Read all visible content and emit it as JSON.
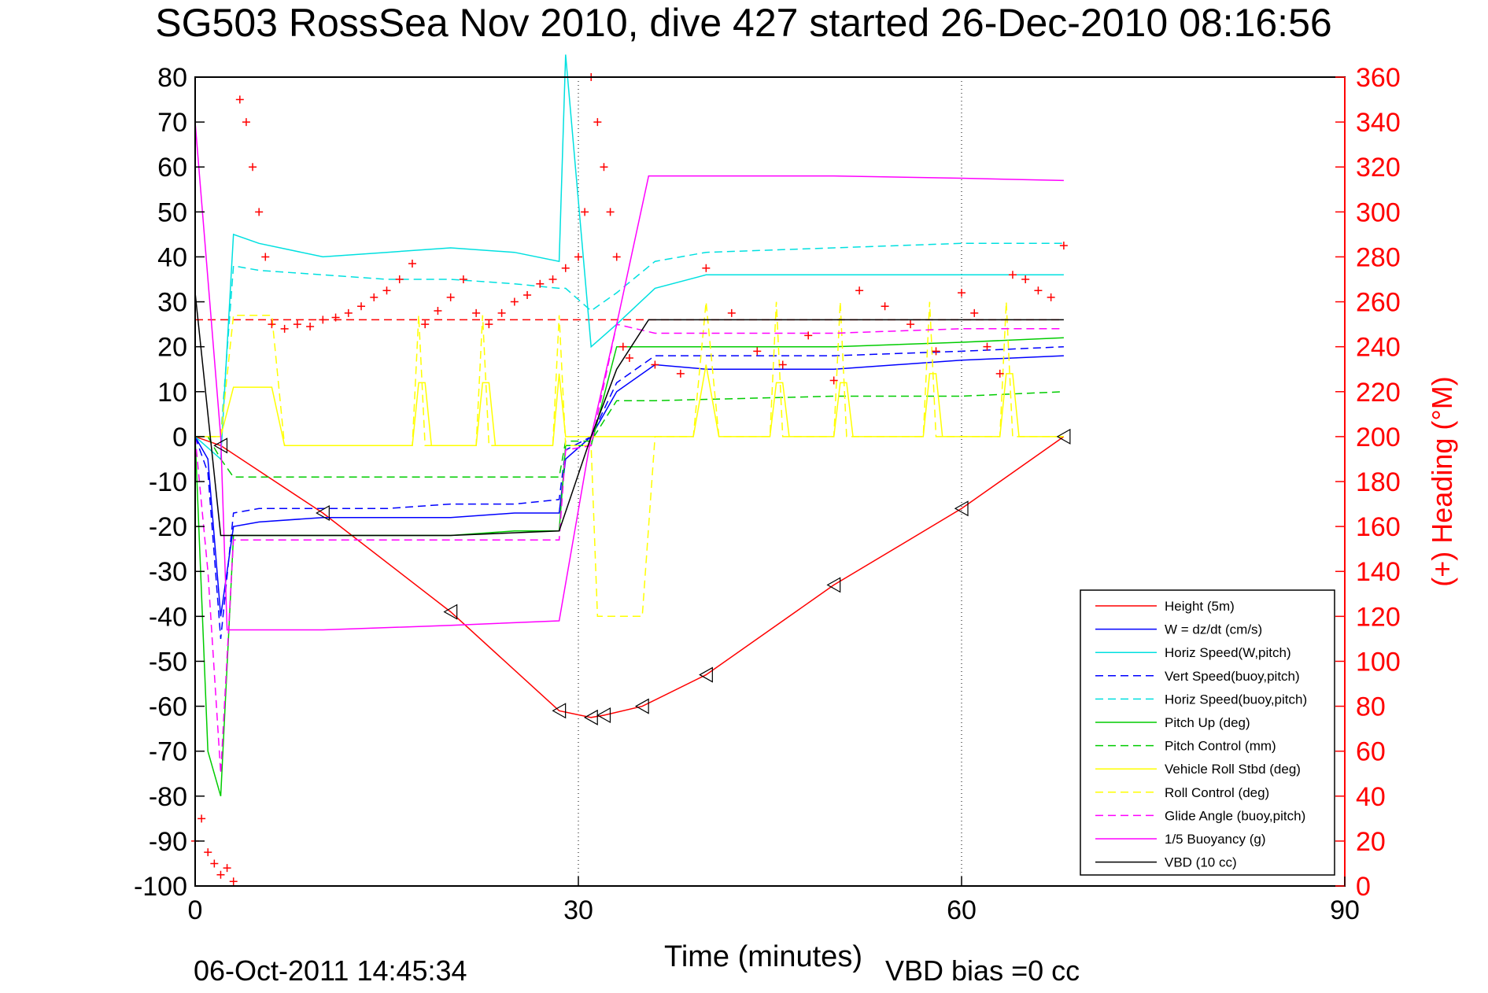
{
  "chart_data": {
    "type": "line",
    "title": "SG503 RossSea Nov 2010, dive 427 started 26-Dec-2010 08:16:56",
    "xlabel": "Time (minutes)",
    "ylabel": "",
    "y2label": "(+) Heading (°M)",
    "xlim": [
      0,
      90
    ],
    "ylim": [
      -100,
      80
    ],
    "y2lim": [
      0,
      360
    ],
    "xticks": [
      0,
      30,
      60,
      90
    ],
    "yticks": [
      80,
      70,
      60,
      50,
      40,
      30,
      20,
      10,
      0,
      -10,
      -20,
      -30,
      -40,
      -50,
      -60,
      -70,
      -80,
      -90,
      -100
    ],
    "y2ticks": [
      360,
      340,
      320,
      300,
      280,
      260,
      240,
      220,
      200,
      180,
      160,
      140,
      120,
      100,
      80,
      60,
      40,
      20,
      0
    ],
    "grid": "dotted at x ticks",
    "legend_position": "bottom-right",
    "footer_left": "06-Oct-2011 14:45:34",
    "footer_right": "VBD bias =0 cc",
    "heading_reference": 252,
    "series": [
      {
        "name": "Height (5m)",
        "color": "#ff0000",
        "dash": "solid",
        "x": [
          0,
          2,
          10,
          20,
          28.5,
          31,
          32,
          35,
          40,
          50,
          60,
          68
        ],
        "y": [
          0,
          -2,
          -17,
          -39,
          -61,
          -62.5,
          -62,
          -60,
          -53,
          -33,
          -16,
          0
        ]
      },
      {
        "name": "W = dz/dt (cm/s)",
        "color": "#0000ff",
        "dash": "solid",
        "x": [
          0,
          1,
          2,
          3,
          5,
          10,
          15,
          20,
          25,
          28.5,
          29,
          31,
          33,
          36,
          40,
          50,
          60,
          68
        ],
        "y": [
          0,
          -5,
          -40,
          -20,
          -19,
          -18,
          -18,
          -18,
          -17,
          -17,
          -5,
          0,
          10,
          16,
          15,
          15,
          17,
          18
        ]
      },
      {
        "name": "Horiz Speed(W,pitch)",
        "color": "#00e0e0",
        "dash": "solid",
        "x": [
          0,
          2,
          3,
          5,
          10,
          15,
          20,
          25,
          28.5,
          29,
          31,
          33,
          36,
          40,
          50,
          60,
          68
        ],
        "y": [
          0,
          -5,
          45,
          43,
          40,
          41,
          42,
          41,
          39,
          85,
          20,
          25,
          33,
          36,
          36,
          36,
          36
        ]
      },
      {
        "name": "Vert Speed(buoy,pitch)",
        "color": "#0000ff",
        "dash": "dashed",
        "x": [
          0,
          1,
          2,
          3,
          5,
          10,
          15,
          20,
          25,
          28.5,
          29,
          31,
          33,
          36,
          40,
          50,
          60,
          68
        ],
        "y": [
          0,
          -8,
          -45,
          -17,
          -16,
          -16,
          -16,
          -15,
          -15,
          -14,
          -3,
          0,
          12,
          18,
          18,
          18,
          19,
          20
        ]
      },
      {
        "name": "Horiz Speed(buoy,pitch)",
        "color": "#00e0e0",
        "dash": "dashed",
        "x": [
          0,
          2,
          3,
          5,
          10,
          15,
          20,
          25,
          28.5,
          29,
          31,
          33,
          36,
          40,
          50,
          60,
          68
        ],
        "y": [
          0,
          0,
          38,
          37,
          36,
          35,
          35,
          34,
          33,
          33,
          28,
          32,
          39,
          41,
          42,
          43,
          43
        ]
      },
      {
        "name": "Pitch Up (deg)",
        "color": "#00cc00",
        "dash": "solid",
        "x": [
          0,
          1,
          2,
          3,
          5,
          10,
          15,
          20,
          25,
          28.5,
          29,
          31,
          33,
          36,
          40,
          50,
          60,
          68
        ],
        "y": [
          0,
          -70,
          -80,
          -22,
          -22,
          -22,
          -22,
          -22,
          -21,
          -21,
          -2,
          -2,
          20,
          20,
          20,
          20,
          21,
          22
        ]
      },
      {
        "name": "Pitch Control (mm)",
        "color": "#00cc00",
        "dash": "dashed",
        "x": [
          0,
          1,
          2,
          3,
          5,
          10,
          20,
          28.5,
          29,
          31,
          33,
          36,
          50,
          60,
          68
        ],
        "y": [
          0,
          0,
          -5,
          -9,
          -9,
          -9,
          -9,
          -9,
          -1,
          -1,
          8,
          8,
          9,
          9,
          10
        ]
      },
      {
        "name": "Vehicle Roll Stbd (deg)",
        "color": "#ffff00",
        "dash": "solid",
        "x": [
          0,
          2,
          3,
          6,
          7,
          10,
          17,
          17.5,
          18,
          18.5,
          22,
          22.5,
          23,
          23.5,
          28,
          28.5,
          29,
          31,
          33,
          35,
          36,
          39,
          40,
          41,
          45,
          45.5,
          46,
          46.5,
          50,
          50.5,
          51,
          51.5,
          57,
          57.5,
          58,
          58.5,
          63,
          63.5,
          64,
          64.5,
          68
        ],
        "y": [
          0,
          0,
          11,
          11,
          -2,
          -2,
          -2,
          12,
          12,
          -2,
          -2,
          12,
          12,
          -2,
          -2,
          14,
          0,
          0,
          0,
          0,
          0,
          0,
          16,
          0,
          0,
          12,
          12,
          0,
          0,
          12,
          12,
          0,
          0,
          14,
          14,
          0,
          0,
          14,
          14,
          0,
          0
        ]
      },
      {
        "name": "Roll Control (deg)",
        "color": "#ffff00",
        "dash": "dashed",
        "x": [
          0,
          2,
          3,
          6,
          7,
          17,
          17.5,
          18,
          22,
          22.5,
          23,
          28,
          28.5,
          29,
          31,
          31.5,
          33,
          35,
          36,
          39,
          40,
          41,
          45,
          45.5,
          46,
          50,
          50.5,
          51,
          57,
          57.5,
          58,
          63,
          63.5,
          64,
          68
        ],
        "y": [
          0,
          0,
          27,
          27,
          -2,
          -2,
          27,
          -2,
          -2,
          27,
          -2,
          -2,
          27,
          -2,
          -2,
          -40,
          -40,
          -40,
          0,
          0,
          30,
          0,
          0,
          30,
          0,
          0,
          30,
          0,
          0,
          30,
          0,
          0,
          30,
          0,
          0
        ]
      },
      {
        "name": "Glide Angle (buoy,pitch)",
        "color": "#ff00ff",
        "dash": "dashed",
        "x": [
          0,
          1,
          2,
          3,
          5,
          10,
          20,
          28.5,
          29,
          31,
          33,
          36,
          40,
          50,
          60,
          68
        ],
        "y": [
          0,
          -30,
          -75,
          -23,
          -23,
          -23,
          -23,
          -23,
          -3,
          -2,
          25,
          23,
          23,
          23,
          24,
          24
        ]
      },
      {
        "name": "1/5 Buoyancy (g)",
        "color": "#ff00ff",
        "dash": "solid",
        "x": [
          0,
          2,
          2.5,
          10,
          20,
          28.5,
          31,
          33,
          35.5,
          40,
          50,
          60,
          68
        ],
        "y": [
          70,
          0,
          -43,
          -43,
          -42,
          -41,
          0,
          25,
          58,
          58,
          58,
          57.5,
          57
        ]
      },
      {
        "name": "VBD (10 cc)",
        "color": "#000000",
        "dash": "solid",
        "x": [
          0,
          1,
          2,
          5,
          10,
          20,
          28.5,
          31,
          33,
          35.5,
          40,
          50,
          60,
          68
        ],
        "y": [
          32,
          5,
          -22,
          -22,
          -22,
          -22,
          -21,
          0,
          15,
          26,
          26,
          26,
          26,
          26
        ]
      }
    ],
    "heading_series": {
      "name": "(+) Heading (°M)",
      "color": "#ff0000",
      "marker": "+",
      "x": [
        0,
        0.5,
        1,
        1.5,
        2,
        2.5,
        3,
        3.5,
        4,
        4.5,
        5,
        5.5,
        6,
        7,
        8,
        9,
        10,
        11,
        12,
        13,
        14,
        15,
        16,
        17,
        18,
        19,
        20,
        21,
        22,
        23,
        24,
        25,
        26,
        27,
        28,
        29,
        30,
        30.5,
        31,
        31.5,
        32,
        32.5,
        33,
        33.5,
        34,
        36,
        38,
        40,
        42,
        44,
        46,
        48,
        50,
        52,
        54,
        56,
        58,
        60,
        61,
        62,
        63,
        64,
        65,
        66,
        67,
        68
      ],
      "y": [
        20,
        30,
        15,
        10,
        5,
        8,
        2,
        350,
        340,
        320,
        300,
        280,
        250,
        248,
        250,
        249,
        252,
        253,
        255,
        258,
        262,
        265,
        270,
        277,
        250,
        256,
        262,
        270,
        255,
        250,
        255,
        260,
        263,
        268,
        270,
        275,
        280,
        300,
        360,
        340,
        320,
        300,
        280,
        240,
        235,
        232,
        228,
        275,
        255,
        238,
        232,
        245,
        225,
        265,
        258,
        250,
        238,
        264,
        255,
        240,
        228,
        272,
        270,
        265,
        262,
        285
      ]
    }
  }
}
